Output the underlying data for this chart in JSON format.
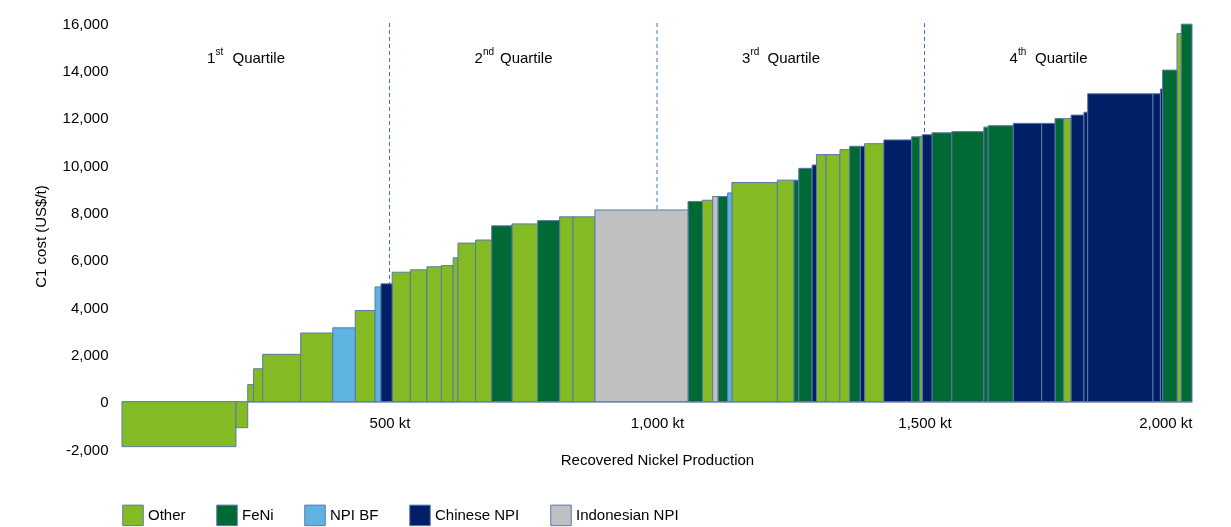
{
  "chart_data": {
    "type": "histogram",
    "xlabel": "Recovered Nickel Production",
    "ylabel": "C1 cost (US$/t)",
    "bins": [
      0,
      213,
      235,
      246,
      263,
      334,
      394,
      436,
      473,
      484,
      505,
      539,
      570,
      597,
      619,
      628,
      661,
      691,
      729,
      777,
      818,
      843,
      884,
      1058,
      1085,
      1104,
      1114,
      1132,
      1140,
      1225,
      1256,
      1265,
      1290,
      1298,
      1316,
      1342,
      1360,
      1380,
      1388,
      1424,
      1476,
      1491,
      1496,
      1514,
      1551,
      1611,
      1619,
      1666,
      1719,
      1744,
      1760,
      1774,
      1798,
      1805,
      1927,
      1941,
      1945,
      1972,
      1980,
      2000
    ],
    "series": [
      {
        "name": "Other",
        "color": "#84bb25",
        "values": [
          -1900,
          -1100,
          720,
          1390,
          2000,
          2900,
          null,
          3850,
          null,
          null,
          5470,
          5570,
          5700,
          5750,
          6080,
          6700,
          6830,
          null,
          7510,
          null,
          7810,
          7810,
          null,
          null,
          8510,
          null,
          null,
          null,
          9260,
          9360,
          null,
          null,
          null,
          10440,
          10440,
          10650,
          null,
          null,
          10900,
          null,
          null,
          11210,
          null,
          null,
          null,
          null,
          null,
          null,
          null,
          null,
          11960,
          null,
          null,
          null,
          null,
          null,
          null,
          15550,
          null
        ]
      },
      {
        "name": "FeNi",
        "color": "#006934",
        "values": [
          null,
          null,
          null,
          null,
          null,
          null,
          null,
          null,
          null,
          null,
          null,
          null,
          null,
          null,
          null,
          null,
          null,
          7430,
          null,
          7650,
          null,
          null,
          null,
          8460,
          null,
          null,
          8670,
          null,
          null,
          null,
          9360,
          9860,
          null,
          null,
          null,
          null,
          10790,
          null,
          null,
          null,
          11190,
          null,
          null,
          11360,
          11410,
          11600,
          11660,
          null,
          null,
          11960,
          null,
          null,
          null,
          null,
          null,
          null,
          14010,
          null,
          15950
        ]
      },
      {
        "name": "NPI BF",
        "color": "#5eb3e0",
        "values": [
          null,
          null,
          null,
          null,
          null,
          null,
          3120,
          null,
          4850,
          null,
          null,
          null,
          null,
          null,
          null,
          null,
          null,
          null,
          null,
          null,
          null,
          null,
          null,
          null,
          null,
          null,
          null,
          8820,
          null,
          null,
          null,
          null,
          null,
          null,
          null,
          null,
          null,
          null,
          null,
          null,
          null,
          null,
          null,
          null,
          null,
          null,
          null,
          null,
          null,
          null,
          null,
          null,
          null,
          null,
          null,
          null,
          null,
          null,
          null
        ]
      },
      {
        "name": "Chinese NPI",
        "color": "#001f66",
        "values": [
          null,
          null,
          null,
          null,
          null,
          null,
          null,
          null,
          null,
          4980,
          null,
          null,
          null,
          null,
          null,
          null,
          null,
          null,
          null,
          null,
          null,
          null,
          null,
          null,
          null,
          null,
          null,
          null,
          null,
          null,
          null,
          null,
          10000,
          null,
          null,
          null,
          null,
          10790,
          null,
          11060,
          null,
          null,
          11280,
          null,
          null,
          null,
          null,
          11760,
          11760,
          null,
          null,
          12110,
          12230,
          13010,
          13010,
          13210,
          null,
          null,
          null
        ]
      },
      {
        "name": "Indonesian NPI",
        "color": "#c0c0c0",
        "values": [
          null,
          null,
          null,
          null,
          null,
          null,
          null,
          null,
          null,
          null,
          null,
          null,
          null,
          null,
          null,
          null,
          null,
          null,
          null,
          null,
          null,
          null,
          8100,
          null,
          null,
          8670,
          null,
          null,
          null,
          null,
          null,
          null,
          null,
          null,
          null,
          null,
          null,
          null,
          null,
          null,
          null,
          null,
          null,
          null,
          null,
          null,
          null,
          null,
          null,
          null,
          null,
          null,
          null,
          null,
          null,
          null,
          null,
          null,
          null
        ]
      }
    ],
    "xlim": [
      0,
      2000
    ],
    "xticks": [
      {
        "value": 500,
        "label": "500 kt"
      },
      {
        "value": 1000,
        "label": "1,000 kt"
      },
      {
        "value": 1500,
        "label": "1,500 kt"
      },
      {
        "value": 2000,
        "label": "2,000 kt"
      }
    ],
    "ylim": [
      -2000,
      16000
    ],
    "yticks": [
      {
        "value": -2000,
        "label": "-2,000"
      },
      0,
      {
        "value": 2000,
        "label": "2,000"
      },
      {
        "value": 4000,
        "label": "4,000"
      },
      {
        "value": 6000,
        "label": "6,000"
      },
      {
        "value": 8000,
        "label": "8,000"
      },
      {
        "value": 10000,
        "label": "10,000"
      },
      {
        "value": 12000,
        "label": "12,000"
      },
      {
        "value": 14000,
        "label": "14,000"
      },
      {
        "value": 16000,
        "label": "16,000"
      }
    ],
    "ref_lines": [
      {
        "axis": "x",
        "value": 500,
        "color": "#4472c4",
        "line_style": "dashed"
      },
      {
        "axis": "x",
        "value": 1000,
        "color": "#4472c4",
        "line_style": "dashed"
      },
      {
        "axis": "x",
        "value": 1500,
        "color": "#4472c4",
        "line_style": "dashed"
      }
    ],
    "annotations": [
      "1$^{st}$ Quartile",
      "2$^{nd}$ Quartile",
      "3$^{rd}$ Quartile",
      "4$^{th}$ Quartile"
    ],
    "legend": "bottom",
    "grid": false
  }
}
